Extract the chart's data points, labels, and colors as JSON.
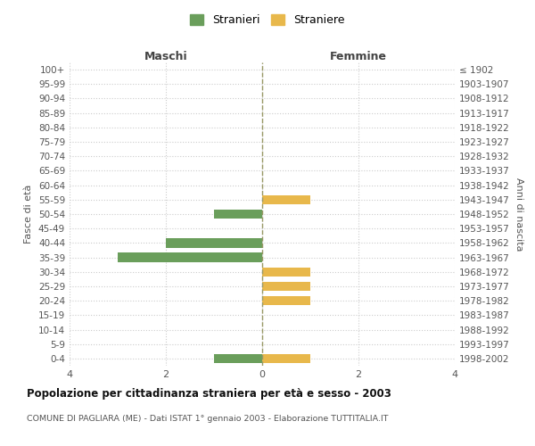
{
  "age_groups": [
    "100+",
    "95-99",
    "90-94",
    "85-89",
    "80-84",
    "75-79",
    "70-74",
    "65-69",
    "60-64",
    "55-59",
    "50-54",
    "45-49",
    "40-44",
    "35-39",
    "30-34",
    "25-29",
    "20-24",
    "15-19",
    "10-14",
    "5-9",
    "0-4"
  ],
  "birth_years": [
    "≤ 1902",
    "1903-1907",
    "1908-1912",
    "1913-1917",
    "1918-1922",
    "1923-1927",
    "1928-1932",
    "1933-1937",
    "1938-1942",
    "1943-1947",
    "1948-1952",
    "1953-1957",
    "1958-1962",
    "1963-1967",
    "1968-1972",
    "1973-1977",
    "1978-1982",
    "1983-1987",
    "1988-1992",
    "1993-1997",
    "1998-2002"
  ],
  "maschi": [
    0,
    0,
    0,
    0,
    0,
    0,
    0,
    0,
    0,
    0,
    1,
    0,
    2,
    3,
    0,
    0,
    0,
    0,
    0,
    0,
    1
  ],
  "femmine": [
    0,
    0,
    0,
    0,
    0,
    0,
    0,
    0,
    0,
    1,
    0,
    0,
    0,
    0,
    1,
    1,
    1,
    0,
    0,
    0,
    1
  ],
  "color_maschi": "#6a9e5b",
  "color_femmine": "#e8b84b",
  "xlabel_left": "Maschi",
  "xlabel_right": "Femmine",
  "ylabel_left": "Fasce di età",
  "ylabel_right": "Anni di nascita",
  "title": "Popolazione per cittadinanza straniera per età e sesso - 2003",
  "subtitle": "COMUNE DI PAGLIARA (ME) - Dati ISTAT 1° gennaio 2003 - Elaborazione TUTTITALIA.IT",
  "legend_maschi": "Stranieri",
  "legend_femmine": "Straniere",
  "xlim": 4,
  "background_color": "#ffffff",
  "grid_color": "#cccccc"
}
